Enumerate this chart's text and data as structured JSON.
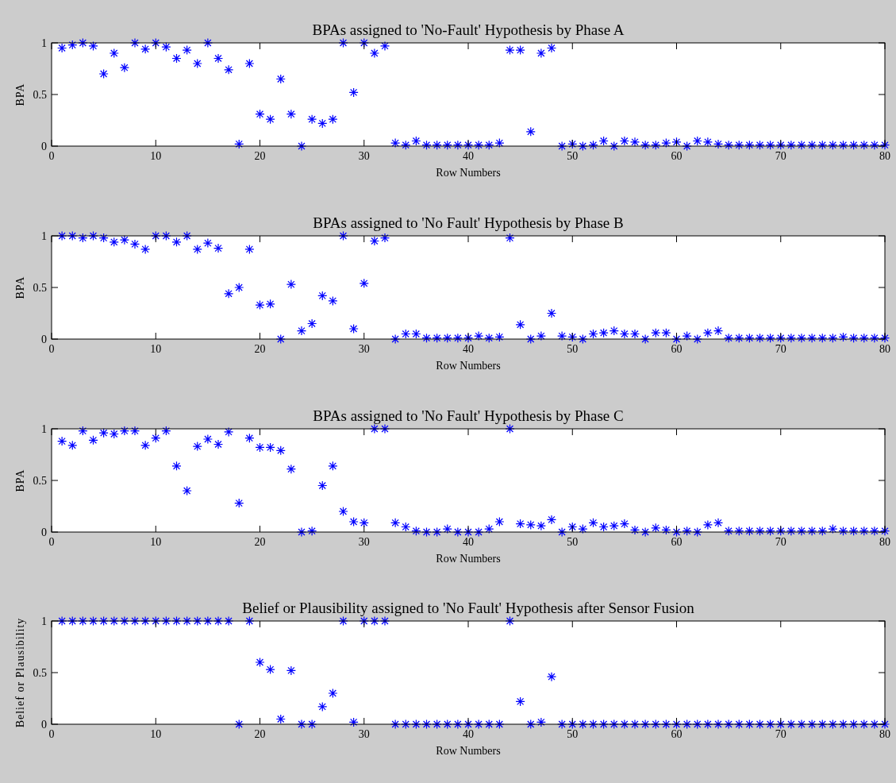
{
  "chart_data": [
    {
      "type": "scatter",
      "title": "BPAs assigned to 'No-Fault' Hypothesis by Phase A",
      "xlabel": "Row Numbers",
      "ylabel": "BPA",
      "xlim": [
        0,
        80
      ],
      "ylim": [
        0,
        1
      ],
      "xticks": [
        0,
        10,
        20,
        30,
        40,
        50,
        60,
        70,
        80
      ],
      "yticks": [
        0,
        0.5,
        1
      ],
      "marker": "cross",
      "series": [
        {
          "color": "#0000ff",
          "x": [
            1,
            2,
            3,
            4,
            5,
            6,
            7,
            8,
            9,
            10,
            11,
            12,
            13,
            14,
            15,
            16,
            17,
            18,
            19,
            20,
            21,
            22,
            23,
            24,
            25,
            26,
            27,
            28,
            29,
            30,
            31,
            32,
            33,
            34,
            35,
            36,
            37,
            38,
            39,
            40,
            41,
            42,
            43,
            44,
            45,
            46,
            47,
            48,
            49,
            50,
            51,
            52,
            53,
            54,
            55,
            56,
            57,
            58,
            59,
            60,
            61,
            62,
            63,
            64,
            65,
            66,
            67,
            68,
            69,
            70,
            71,
            72,
            73,
            74,
            75,
            76,
            77,
            78,
            79,
            80
          ],
          "values": [
            0.95,
            0.98,
            1.0,
            0.97,
            0.7,
            0.9,
            0.76,
            1.0,
            0.94,
            1.0,
            0.96,
            0.85,
            0.93,
            0.8,
            1.0,
            0.85,
            0.74,
            0.02,
            0.8,
            0.31,
            0.26,
            0.65,
            0.31,
            0.0,
            0.26,
            0.22,
            0.26,
            1.0,
            0.52,
            1.0,
            0.9,
            0.97,
            0.03,
            0.01,
            0.05,
            0.01,
            0.01,
            0.01,
            0.01,
            0.01,
            0.01,
            0.01,
            0.03,
            0.93,
            0.93,
            0.14,
            0.9,
            0.95,
            0.0,
            0.02,
            0.0,
            0.01,
            0.05,
            0.0,
            0.05,
            0.04,
            0.01,
            0.01,
            0.03,
            0.04,
            0.0,
            0.05,
            0.04,
            0.02,
            0.01,
            0.01,
            0.01,
            0.01,
            0.01,
            0.01,
            0.01,
            0.01,
            0.01,
            0.01,
            0.01,
            0.01,
            0.01,
            0.01,
            0.01,
            0.01
          ]
        }
      ]
    },
    {
      "type": "scatter",
      "title": "BPAs assigned to 'No Fault' Hypothesis by Phase B",
      "xlabel": "Row Numbers",
      "ylabel": "BPA",
      "xlim": [
        0,
        80
      ],
      "ylim": [
        0,
        1
      ],
      "xticks": [
        0,
        10,
        20,
        30,
        40,
        50,
        60,
        70,
        80
      ],
      "yticks": [
        0,
        0.5,
        1
      ],
      "marker": "cross",
      "series": [
        {
          "color": "#0000ff",
          "x": [
            1,
            2,
            3,
            4,
            5,
            6,
            7,
            8,
            9,
            10,
            11,
            12,
            13,
            14,
            15,
            16,
            17,
            18,
            19,
            20,
            21,
            22,
            23,
            24,
            25,
            26,
            27,
            28,
            29,
            30,
            31,
            32,
            33,
            34,
            35,
            36,
            37,
            38,
            39,
            40,
            41,
            42,
            43,
            44,
            45,
            46,
            47,
            48,
            49,
            50,
            51,
            52,
            53,
            54,
            55,
            56,
            57,
            58,
            59,
            60,
            61,
            62,
            63,
            64,
            65,
            66,
            67,
            68,
            69,
            70,
            71,
            72,
            73,
            74,
            75,
            76,
            77,
            78,
            79,
            80
          ],
          "values": [
            1.0,
            1.0,
            0.98,
            1.0,
            0.98,
            0.94,
            0.96,
            0.92,
            0.87,
            1.0,
            1.0,
            0.94,
            1.0,
            0.87,
            0.93,
            0.88,
            0.44,
            0.5,
            0.87,
            0.33,
            0.34,
            0.0,
            0.53,
            0.08,
            0.15,
            0.42,
            0.37,
            1.0,
            0.1,
            0.54,
            0.95,
            0.98,
            0.0,
            0.05,
            0.05,
            0.01,
            0.01,
            0.01,
            0.01,
            0.01,
            0.03,
            0.01,
            0.02,
            0.98,
            0.14,
            0.0,
            0.03,
            0.25,
            0.03,
            0.02,
            0.0,
            0.05,
            0.06,
            0.08,
            0.05,
            0.05,
            0.0,
            0.06,
            0.06,
            0.0,
            0.03,
            0.0,
            0.06,
            0.08,
            0.01,
            0.01,
            0.01,
            0.01,
            0.01,
            0.01,
            0.01,
            0.01,
            0.01,
            0.01,
            0.01,
            0.02,
            0.01,
            0.01,
            0.01,
            0.01
          ]
        }
      ]
    },
    {
      "type": "scatter",
      "title": "BPAs assigned to 'No Fault' Hypothesis by Phase C",
      "xlabel": "Row Numbers",
      "ylabel": "BPA",
      "xlim": [
        0,
        80
      ],
      "ylim": [
        0,
        1
      ],
      "xticks": [
        0,
        10,
        20,
        30,
        40,
        50,
        60,
        70,
        80
      ],
      "yticks": [
        0,
        0.5,
        1
      ],
      "marker": "cross",
      "series": [
        {
          "color": "#0000ff",
          "x": [
            1,
            2,
            3,
            4,
            5,
            6,
            7,
            8,
            9,
            10,
            11,
            12,
            13,
            14,
            15,
            16,
            17,
            18,
            19,
            20,
            21,
            22,
            23,
            24,
            25,
            26,
            27,
            28,
            29,
            30,
            31,
            32,
            33,
            34,
            35,
            36,
            37,
            38,
            39,
            40,
            41,
            42,
            43,
            44,
            45,
            46,
            47,
            48,
            49,
            50,
            51,
            52,
            53,
            54,
            55,
            56,
            57,
            58,
            59,
            60,
            61,
            62,
            63,
            64,
            65,
            66,
            67,
            68,
            69,
            70,
            71,
            72,
            73,
            74,
            75,
            76,
            77,
            78,
            79,
            80
          ],
          "values": [
            0.88,
            0.84,
            0.98,
            0.89,
            0.96,
            0.95,
            0.98,
            0.98,
            0.84,
            0.91,
            0.98,
            0.64,
            0.4,
            0.83,
            0.9,
            0.85,
            0.97,
            0.28,
            0.91,
            0.82,
            0.82,
            0.79,
            0.61,
            0.0,
            0.01,
            0.45,
            0.64,
            0.2,
            0.1,
            0.09,
            1.0,
            1.0,
            0.09,
            0.05,
            0.01,
            0.0,
            0.0,
            0.03,
            0.0,
            0.0,
            0.0,
            0.03,
            0.1,
            1.0,
            0.08,
            0.07,
            0.06,
            0.12,
            0.0,
            0.05,
            0.03,
            0.09,
            0.05,
            0.06,
            0.08,
            0.02,
            0.0,
            0.04,
            0.02,
            0.0,
            0.01,
            0.0,
            0.07,
            0.09,
            0.01,
            0.01,
            0.01,
            0.01,
            0.01,
            0.01,
            0.01,
            0.01,
            0.01,
            0.01,
            0.03,
            0.01,
            0.01,
            0.01,
            0.01,
            0.01
          ]
        }
      ]
    },
    {
      "type": "scatter",
      "title": "Belief or Plausibility assigned to 'No Fault' Hypothesis after Sensor Fusion",
      "xlabel": "Row Numbers",
      "ylabel": "Belief or Plausibility",
      "xlim": [
        0,
        80
      ],
      "ylim": [
        0,
        1
      ],
      "xticks": [
        0,
        10,
        20,
        30,
        40,
        50,
        60,
        70,
        80
      ],
      "yticks": [
        0,
        0.5,
        1
      ],
      "marker": "cross",
      "series": [
        {
          "color": "#0000ff",
          "x": [
            1,
            2,
            3,
            4,
            5,
            6,
            7,
            8,
            9,
            10,
            11,
            12,
            13,
            14,
            15,
            16,
            17,
            18,
            19,
            20,
            21,
            22,
            23,
            24,
            25,
            26,
            27,
            28,
            29,
            30,
            31,
            32,
            33,
            34,
            35,
            36,
            37,
            38,
            39,
            40,
            41,
            42,
            43,
            44,
            45,
            46,
            47,
            48,
            49,
            50,
            51,
            52,
            53,
            54,
            55,
            56,
            57,
            58,
            59,
            60,
            61,
            62,
            63,
            64,
            65,
            66,
            67,
            68,
            69,
            70,
            71,
            72,
            73,
            74,
            75,
            76,
            77,
            78,
            79,
            80
          ],
          "values": [
            1,
            1,
            1,
            1,
            1,
            1,
            1,
            1,
            1,
            1,
            1,
            1,
            1,
            1,
            1,
            1,
            1,
            0,
            1,
            0.6,
            0.53,
            0.05,
            0.52,
            0,
            0,
            0.17,
            0.3,
            1,
            0.02,
            1,
            1,
            1,
            0,
            0,
            0,
            0,
            0,
            0,
            0,
            0,
            0,
            0,
            0,
            1,
            0.22,
            0,
            0.02,
            0.46,
            0,
            0,
            0,
            0,
            0,
            0,
            0,
            0,
            0,
            0,
            0,
            0,
            0,
            0,
            0,
            0,
            0,
            0,
            0,
            0,
            0,
            0,
            0,
            0,
            0,
            0,
            0,
            0,
            0,
            0,
            0,
            0
          ]
        }
      ]
    }
  ]
}
